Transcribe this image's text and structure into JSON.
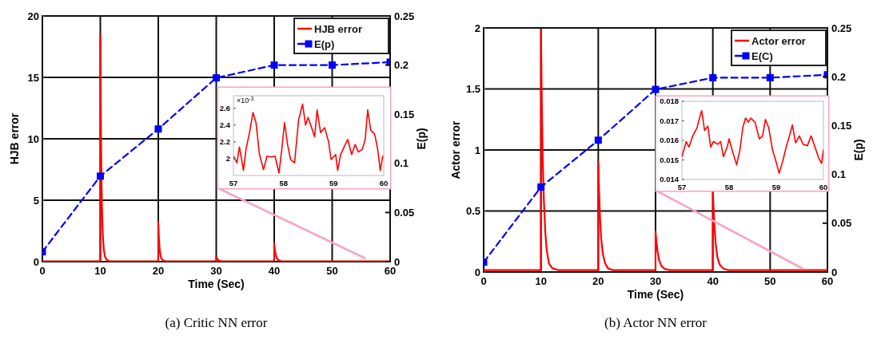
{
  "chart_data": [
    {
      "type": "line",
      "title": "(a)  Critic NN error",
      "xlabel": "Time (Sec)",
      "ylabel": "HJB error",
      "y2label": "E(p)",
      "xlim": [
        0,
        60
      ],
      "xticks": [
        0,
        10,
        20,
        30,
        40,
        50,
        60
      ],
      "ylim": [
        0,
        20
      ],
      "yticks": [
        0,
        5,
        10,
        15,
        20
      ],
      "y2lim": [
        0,
        0.25
      ],
      "y2ticks": [
        0,
        0.05,
        0.1,
        0.15,
        0.2,
        0.25
      ],
      "grid": true,
      "legend": "top right",
      "series": [
        {
          "name": "HJB error",
          "color": "#ff0000",
          "marker": "none",
          "line_style": "solid",
          "x": [
            0,
            9.99,
            10,
            10.1,
            10.2,
            10.3,
            10.45,
            10.6,
            10.8,
            11.1,
            11.5,
            12,
            19.99,
            20,
            20.1,
            20.2,
            20.35,
            20.5,
            20.8,
            21.2,
            22,
            29.99,
            30,
            30.2,
            30.5,
            31,
            39.99,
            40,
            40.1,
            40.25,
            40.45,
            40.7,
            41.2,
            42,
            60
          ],
          "values": [
            0.02,
            0.02,
            18.5,
            11,
            6.5,
            4,
            2,
            1,
            0.4,
            0.15,
            0.05,
            0.02,
            0.02,
            3.2,
            2,
            1.2,
            0.6,
            0.3,
            0.1,
            0.04,
            0.02,
            0.02,
            0.4,
            0.2,
            0.08,
            0.02,
            0.02,
            1.5,
            1,
            0.6,
            0.3,
            0.12,
            0.04,
            0.02,
            0.02
          ]
        },
        {
          "name": "E(p)",
          "color": "#0000ff",
          "marker": "square",
          "line_style": "dashed",
          "axis": "y2",
          "x": [
            0,
            10,
            20,
            30,
            40,
            50,
            60
          ],
          "values": [
            0.01,
            0.087,
            0.135,
            0.187,
            0.2,
            0.2,
            0.203
          ]
        }
      ]
    },
    {
      "type": "line",
      "xlim": [
        57,
        60
      ],
      "xticks": [
        57,
        58,
        59,
        60
      ],
      "ylim": [
        1.8,
        2.75
      ],
      "yticks": [
        2,
        2.2,
        2.4,
        2.6
      ],
      "annotations": [
        "×10$^{-3}$"
      ],
      "series": [
        {
          "color": "#ff0000",
          "x": [
            57.0,
            57.07,
            57.12,
            57.2,
            57.25,
            57.32,
            57.39,
            57.45,
            57.52,
            57.6,
            57.67,
            57.75,
            57.83,
            57.91,
            57.97,
            58.02,
            58.08,
            58.14,
            58.22,
            58.3,
            58.38,
            58.44,
            58.49,
            58.56,
            58.62,
            58.67,
            58.74,
            58.82,
            58.9,
            58.95,
            59.04,
            59.08,
            59.14,
            59.21,
            59.28,
            59.36,
            59.43,
            59.49,
            59.57,
            59.63,
            59.68,
            59.74,
            59.82,
            59.88,
            59.93,
            59.98
          ],
          "values": [
            2.03,
            1.95,
            2.14,
            1.86,
            2.11,
            2.31,
            2.55,
            2.43,
            2.05,
            1.87,
            2.03,
            2.02,
            2.03,
            1.83,
            2.14,
            2.43,
            2.17,
            1.99,
            1.95,
            2.46,
            2.65,
            2.4,
            2.49,
            2.37,
            2.26,
            2.58,
            2.31,
            2.37,
            2.2,
            1.99,
            2.05,
            1.86,
            2.05,
            2.14,
            2.23,
            2.05,
            2.17,
            2.08,
            2.11,
            2.23,
            2.58,
            2.34,
            2.29,
            2.11,
            1.86,
            2.03
          ]
        }
      ]
    },
    {
      "type": "line",
      "title": "(b)  Actor NN error",
      "xlabel": "Time (Sec)",
      "ylabel": "Actor error",
      "y2label": "E(p)",
      "xlim": [
        0,
        60
      ],
      "xticks": [
        0,
        10,
        20,
        30,
        40,
        50,
        60
      ],
      "ylim": [
        0,
        2
      ],
      "yticks": [
        0,
        0.5,
        1,
        1.5,
        2
      ],
      "y2lim": [
        0,
        0.25
      ],
      "y2ticks": [
        0,
        0.05,
        0.1,
        0.15,
        0.2,
        0.25
      ],
      "grid": true,
      "legend": "top right",
      "series": [
        {
          "name": "Actor error",
          "color": "#ff0000",
          "marker": "none",
          "line_style": "solid",
          "x": [
            0,
            9.99,
            10,
            10.15,
            10.3,
            10.5,
            10.75,
            11,
            11.4,
            12,
            13,
            19.99,
            20,
            20.15,
            20.3,
            20.5,
            20.8,
            21.2,
            21.7,
            22.5,
            29.99,
            30,
            30.15,
            30.35,
            30.6,
            31,
            31.6,
            32.5,
            39.99,
            40,
            40.15,
            40.3,
            40.5,
            40.8,
            41.2,
            41.8,
            42.6,
            60
          ],
          "values": [
            0.016,
            0.016,
            1.98,
            1.4,
            0.95,
            0.6,
            0.33,
            0.18,
            0.07,
            0.03,
            0.016,
            0.016,
            0.9,
            0.65,
            0.45,
            0.28,
            0.15,
            0.07,
            0.03,
            0.016,
            0.016,
            0.33,
            0.25,
            0.17,
            0.1,
            0.05,
            0.025,
            0.016,
            0.016,
            0.66,
            0.5,
            0.36,
            0.23,
            0.12,
            0.06,
            0.03,
            0.016,
            0.016
          ]
        },
        {
          "name": "E(C)",
          "color": "#0000ff",
          "marker": "square",
          "line_style": "dashed",
          "axis": "y2",
          "x": [
            0,
            10,
            20,
            30,
            40,
            50,
            60
          ],
          "values": [
            0.01,
            0.087,
            0.135,
            0.187,
            0.199,
            0.199,
            0.202
          ]
        }
      ]
    },
    {
      "type": "line",
      "xlim": [
        57,
        60
      ],
      "xticks": [
        57,
        58,
        59,
        60
      ],
      "ylim": [
        0.014,
        0.018
      ],
      "yticks": [
        0.014,
        0.015,
        0.016,
        0.017,
        0.018
      ],
      "series": [
        {
          "color": "#ff0000",
          "x": [
            57.0,
            57.09,
            57.15,
            57.23,
            57.32,
            57.38,
            57.42,
            57.48,
            57.55,
            57.61,
            57.67,
            57.76,
            57.82,
            57.88,
            57.96,
            58.0,
            58.08,
            58.16,
            58.23,
            58.29,
            58.35,
            58.41,
            58.46,
            58.55,
            58.64,
            58.71,
            58.77,
            58.84,
            58.92,
            58.99,
            59.06,
            59.14,
            59.21,
            59.28,
            59.34,
            59.41,
            59.49,
            59.57,
            59.66,
            59.74,
            59.81,
            59.9,
            59.96,
            60.0
          ],
          "values": [
            0.01517,
            0.01594,
            0.01566,
            0.01623,
            0.01665,
            0.01721,
            0.01752,
            0.01651,
            0.01672,
            0.01566,
            0.01594,
            0.0158,
            0.01594,
            0.01517,
            0.01566,
            0.01608,
            0.01538,
            0.01475,
            0.01552,
            0.01665,
            0.01714,
            0.01693,
            0.01714,
            0.01693,
            0.01608,
            0.01623,
            0.01707,
            0.01665,
            0.01552,
            0.01496,
            0.01432,
            0.01496,
            0.01566,
            0.01623,
            0.01679,
            0.01587,
            0.01623,
            0.0158,
            0.01573,
            0.01623,
            0.01573,
            0.0151,
            0.01482,
            0.01552
          ]
        }
      ]
    }
  ]
}
